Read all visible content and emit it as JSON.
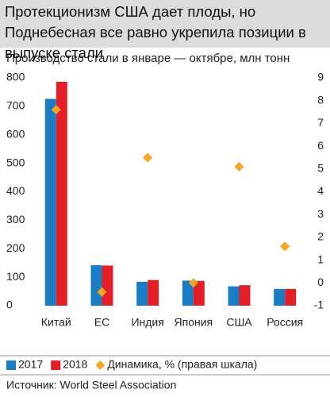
{
  "chart_data": {
    "type": "bar",
    "title": "Протекционизм США дает плоды, но Поднебесная все равно укрепила позиции в выпуске стали",
    "subtitle": "Производство стали в  январе — октябре, млн тонн",
    "categories": [
      "Китай",
      "ЕС",
      "Индия",
      "Япония",
      "США",
      "Россия"
    ],
    "series": [
      {
        "name": "2017",
        "color": "#1b7cc6",
        "values": [
          726,
          142,
          84,
          88,
          68,
          59
        ]
      },
      {
        "name": "2018",
        "color": "#e31e26",
        "values": [
          786,
          141,
          90,
          87,
          72,
          59
        ]
      },
      {
        "name": "Динамика, % (правая шкала)",
        "color": "#f5a623",
        "axis": "y2",
        "values": [
          7.6,
          -0.4,
          5.5,
          0,
          5.1,
          1.6
        ]
      }
    ],
    "ylim": [
      0,
      800
    ],
    "yticks": [
      0,
      100,
      200,
      300,
      400,
      500,
      600,
      700,
      800
    ],
    "y2lim": [
      -1,
      9
    ],
    "y2ticks": [
      -1,
      0,
      1,
      2,
      3,
      4,
      5,
      6,
      7,
      8,
      9
    ],
    "source": "Источник: World Steel Association"
  }
}
